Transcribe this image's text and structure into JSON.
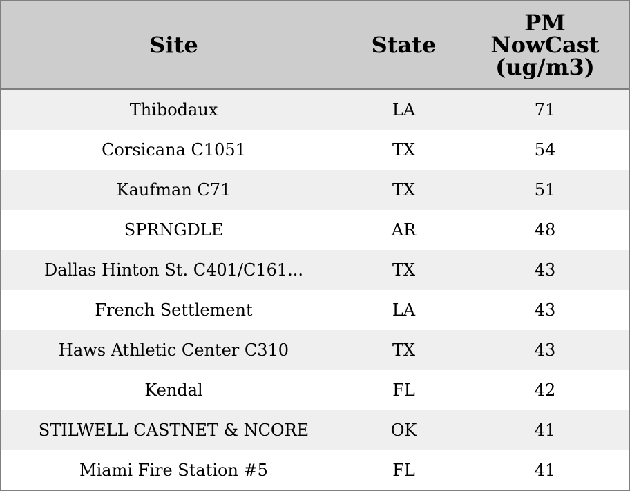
{
  "chart_data": {
    "type": "table",
    "columns": [
      "Site",
      "State",
      "PM NowCast (ug/m3)"
    ],
    "header_lines": {
      "value": [
        "PM",
        "NowCast",
        "(ug/m3)"
      ]
    },
    "rows": [
      {
        "site": "Thibodaux",
        "state": "LA",
        "value": 71
      },
      {
        "site": "Corsicana C1051",
        "state": "TX",
        "value": 54
      },
      {
        "site": "Kaufman C71",
        "state": "TX",
        "value": 51
      },
      {
        "site": "SPRNGDLE",
        "state": "AR",
        "value": 48
      },
      {
        "site": "Dallas Hinton St. C401/C161...",
        "state": "TX",
        "value": 43
      },
      {
        "site": "French Settlement",
        "state": "LA",
        "value": 43
      },
      {
        "site": "Haws Athletic Center C310",
        "state": "TX",
        "value": 43
      },
      {
        "site": "Kendal",
        "state": "FL",
        "value": 42
      },
      {
        "site": "STILWELL CASTNET & NCORE",
        "state": "OK",
        "value": 41
      },
      {
        "site": "Miami Fire Station #5",
        "state": "FL",
        "value": 41
      }
    ],
    "colors": {
      "header_bg": "#cdcdcd",
      "row_alt_bg": "#efefef",
      "row_bg": "#ffffff",
      "border": "#7f7f7f"
    }
  }
}
